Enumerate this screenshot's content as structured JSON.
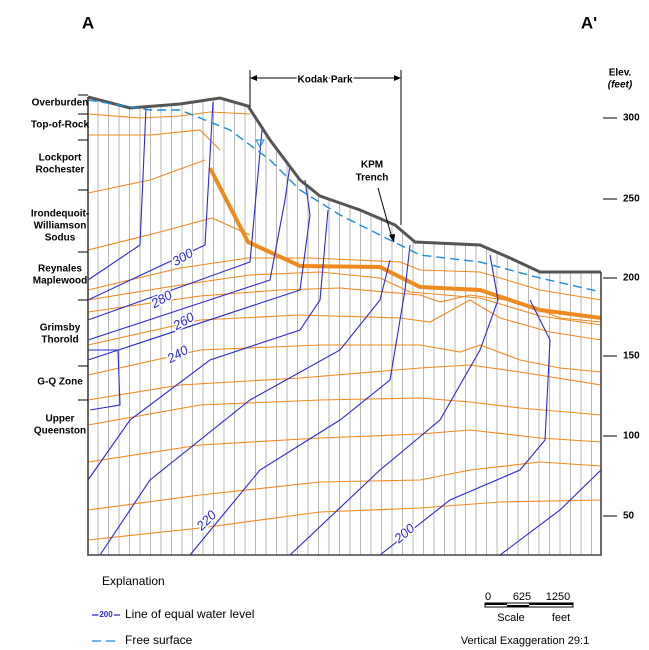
{
  "sections": {
    "left": "A",
    "right": "A'"
  },
  "kodak_park": "Kodak Park",
  "elevation_axis": {
    "title": [
      "Elev.",
      "(feet)"
    ],
    "ticks": [
      300,
      250,
      200,
      150,
      100,
      50
    ]
  },
  "layers": [
    {
      "lines": [
        "Overburden"
      ]
    },
    {
      "lines": [
        "Top-of-Rock"
      ]
    },
    {
      "lines": [
        "Lockport",
        "Rochester"
      ]
    },
    {
      "lines": [
        "Irondequoit-",
        "Williamson",
        "Sodus"
      ]
    },
    {
      "lines": [
        "Reynales",
        "Maplewood"
      ]
    },
    {
      "lines": [
        "Grimsby",
        "Thorold"
      ]
    },
    {
      "lines": [
        "G-Q Zone"
      ]
    },
    {
      "lines": [
        "Upper",
        "Queenston"
      ]
    }
  ],
  "trench": [
    "KPM",
    "Trench"
  ],
  "contour_labels": [
    300,
    280,
    260,
    240,
    220,
    200
  ],
  "explanation": {
    "title": "Explanation",
    "items": [
      {
        "symbol_label": "200",
        "label": "Line of equal water level"
      },
      {
        "label": "Free surface"
      }
    ]
  },
  "scale": {
    "ticks": [
      "0",
      "625",
      "1250"
    ],
    "title": "Scale",
    "unit": "feet",
    "note": "Vertical Exaggeration 29:1"
  }
}
